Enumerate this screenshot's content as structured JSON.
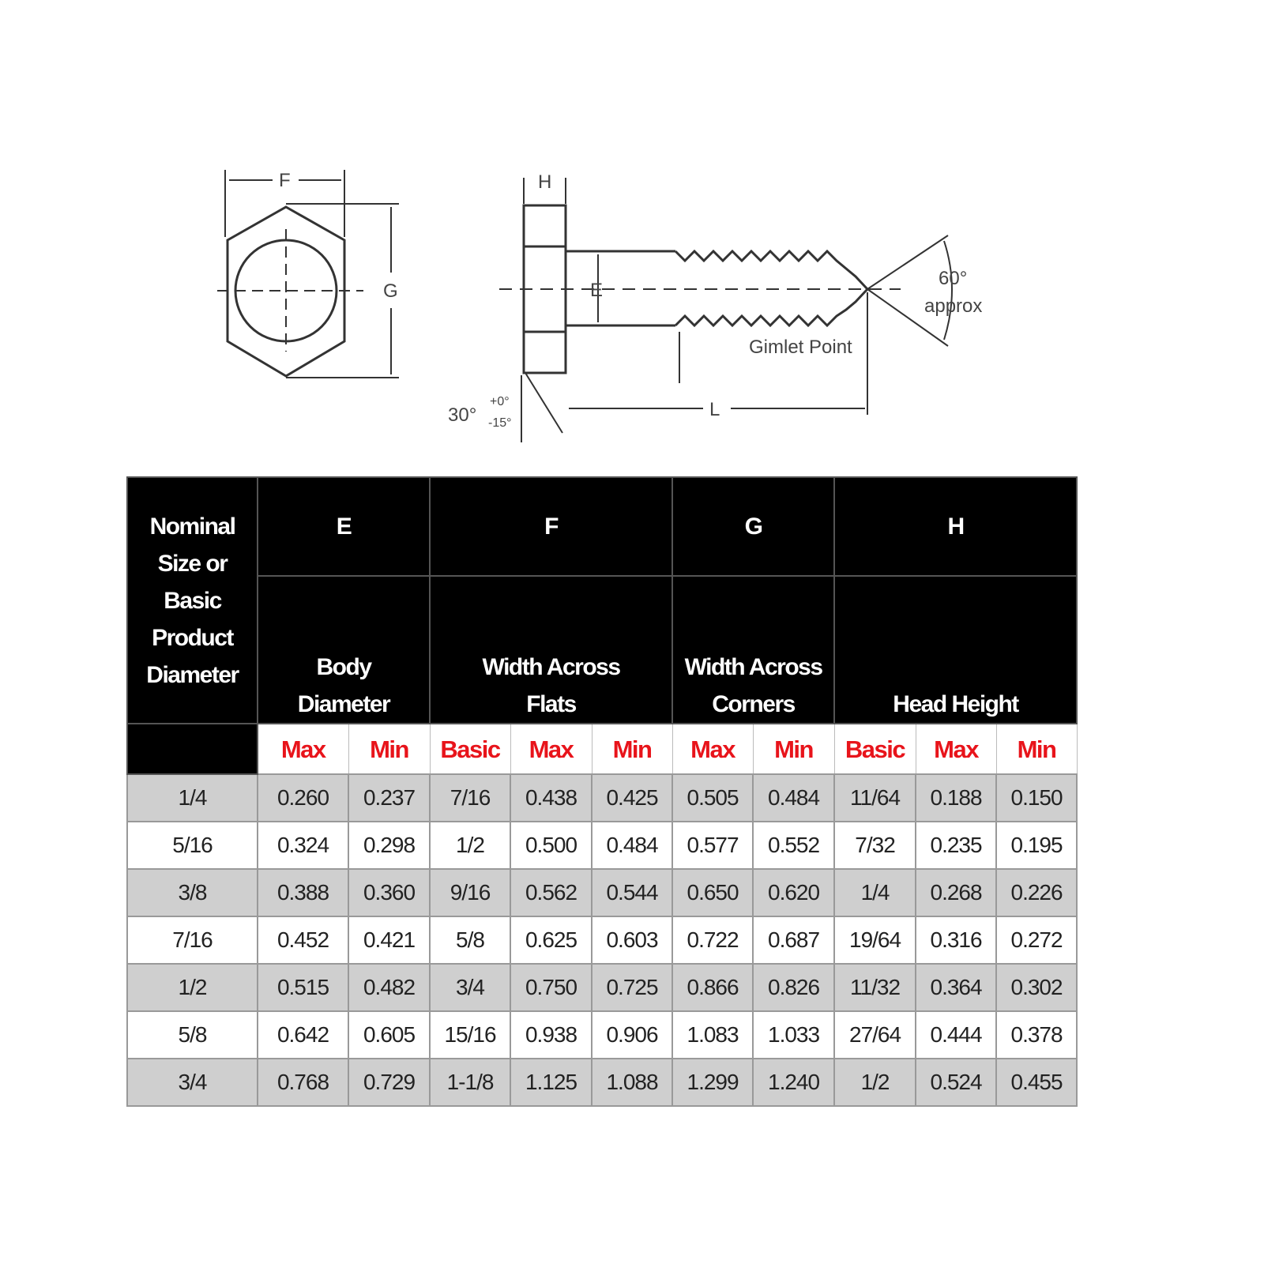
{
  "diagram": {
    "labels": {
      "F": "F",
      "G": "G",
      "H": "H",
      "E": "E",
      "L": "L",
      "angle": "60°",
      "approx": "approx",
      "gimlet": "Gimlet Point",
      "chamfer": "30°",
      "tol_plus": "+0°",
      "tol_minus": "-15°"
    }
  },
  "table": {
    "nominal_header": "Nominal Size or Basic Product Diameter",
    "nominal_lines": [
      "Nominal",
      "Size or",
      "Basic",
      "Product",
      "Diameter"
    ],
    "groups": [
      {
        "letter": "E",
        "name_lines": [
          "Body",
          "Diameter"
        ],
        "subs": [
          "Max",
          "Min"
        ]
      },
      {
        "letter": "F",
        "name_lines": [
          "Width Across",
          "Flats"
        ],
        "subs": [
          "Basic",
          "Max",
          "Min"
        ]
      },
      {
        "letter": "G",
        "name_lines": [
          "Width Across",
          "Corners"
        ],
        "subs": [
          "Max",
          "Min"
        ]
      },
      {
        "letter": "H",
        "name_lines": [
          "",
          "Head Height"
        ],
        "subs": [
          "Basic",
          "Max",
          "Min"
        ]
      }
    ],
    "rows": [
      [
        "1/4",
        "0.260",
        "0.237",
        "7/16",
        "0.438",
        "0.425",
        "0.505",
        "0.484",
        "11/64",
        "0.188",
        "0.150"
      ],
      [
        "5/16",
        "0.324",
        "0.298",
        "1/2",
        "0.500",
        "0.484",
        "0.577",
        "0.552",
        "7/32",
        "0.235",
        "0.195"
      ],
      [
        "3/8",
        "0.388",
        "0.360",
        "9/16",
        "0.562",
        "0.544",
        "0.650",
        "0.620",
        "1/4",
        "0.268",
        "0.226"
      ],
      [
        "7/16",
        "0.452",
        "0.421",
        "5/8",
        "0.625",
        "0.603",
        "0.722",
        "0.687",
        "19/64",
        "0.316",
        "0.272"
      ],
      [
        "1/2",
        "0.515",
        "0.482",
        "3/4",
        "0.750",
        "0.725",
        "0.866",
        "0.826",
        "11/32",
        "0.364",
        "0.302"
      ],
      [
        "5/8",
        "0.642",
        "0.605",
        "15/16",
        "0.938",
        "0.906",
        "1.083",
        "1.033",
        "27/64",
        "0.444",
        "0.378"
      ],
      [
        "3/4",
        "0.768",
        "0.729",
        "1-1/8",
        "1.125",
        "1.088",
        "1.299",
        "1.240",
        "1/2",
        "0.524",
        "0.455"
      ]
    ]
  },
  "colors": {
    "header_bg": "#000000",
    "sub_header_text": "#e8141b",
    "row_shaded": "#cfcfcf"
  }
}
